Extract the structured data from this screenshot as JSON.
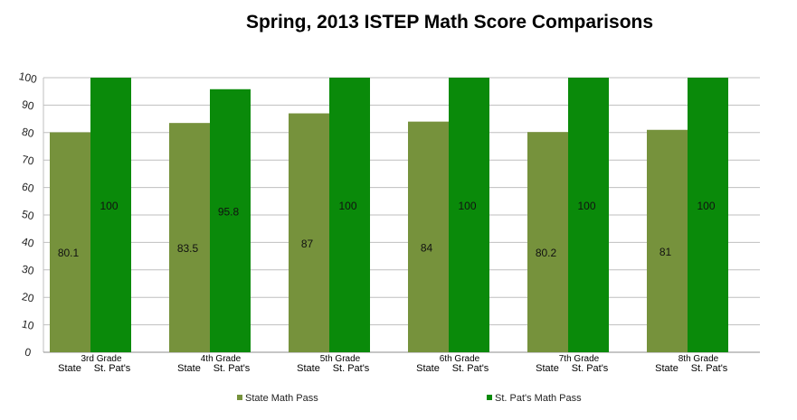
{
  "chart_data": {
    "type": "bar",
    "title": "Spring, 2013 ISTEP Math Score Comparisons",
    "categories": [
      "3rd Grade",
      "4th Grade",
      "5th Grade",
      "6th Grade",
      "7th Grade",
      "8th Grade"
    ],
    "sub_labels": [
      "State",
      "St. Pat's"
    ],
    "series": [
      {
        "name": "State Math Pass",
        "color": "#76923c",
        "values": [
          80.1,
          83.5,
          87,
          84,
          80.2,
          81
        ]
      },
      {
        "name": "St. Pat's Math Pass",
        "color": "#0a8a0a",
        "values": [
          100,
          95.8,
          100,
          100,
          100,
          100
        ]
      }
    ],
    "data_labels": [
      [
        "80.1",
        "83.5",
        "87",
        "84",
        "80.2",
        "81"
      ],
      [
        "100",
        "95.8",
        "100",
        "100",
        "100",
        "100"
      ]
    ],
    "ylim": [
      0,
      100
    ],
    "yticks": [
      "0",
      "10",
      "20",
      "30",
      "40",
      "50",
      "60",
      "70",
      "80",
      "90",
      "100"
    ],
    "grid": true,
    "legend_position": "bottom"
  }
}
